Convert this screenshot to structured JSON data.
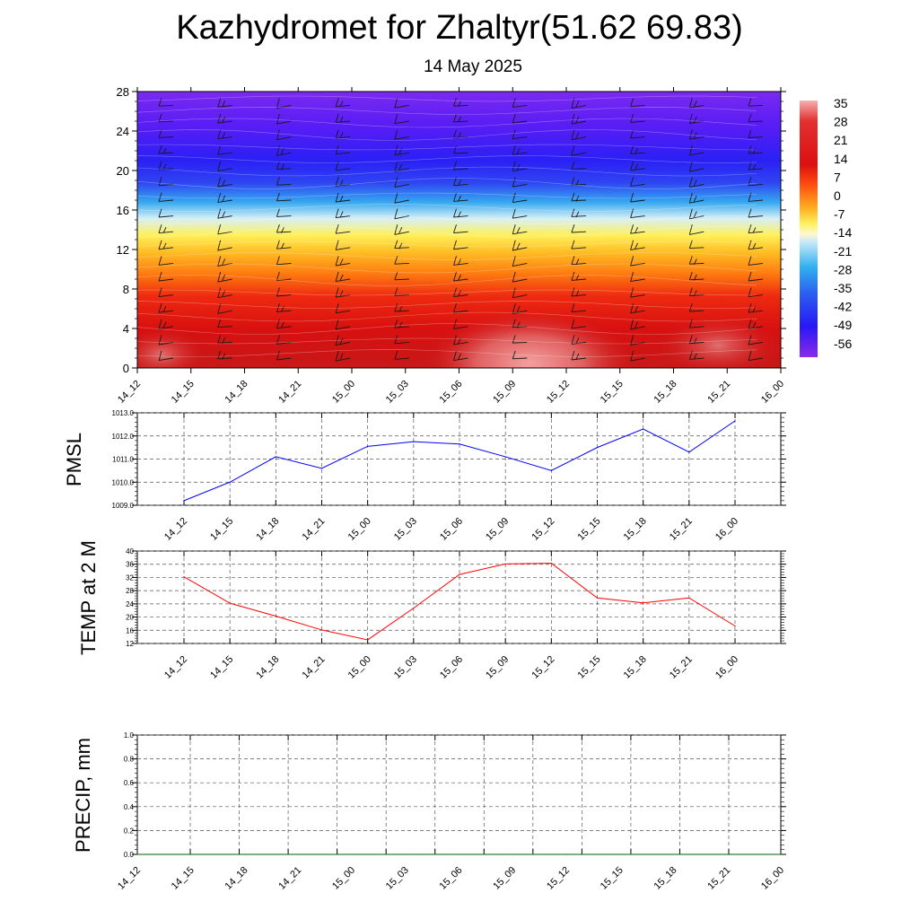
{
  "title": "Kazhydromet for Zhaltyr(51.62 69.83)",
  "subtitle": "14 May 2025",
  "colors": {
    "pmsl_line": "#0000ff",
    "temp_line": "#ff0000",
    "precip_line": "#006400",
    "grid": "#555555",
    "barb": "#1a1a1a"
  },
  "chart_data": [
    {
      "type": "heatmap",
      "name": "cross-section",
      "x": [
        "14_12",
        "14_15",
        "14_18",
        "14_21",
        "15_00",
        "15_03",
        "15_06",
        "15_09",
        "15_12",
        "15_15",
        "15_18",
        "15_21",
        "16_00"
      ],
      "y_ticks": [
        0,
        4,
        8,
        12,
        16,
        20,
        24,
        28
      ],
      "ylim": [
        0,
        28
      ],
      "colorbar": {
        "labels": [
          35,
          28,
          21,
          14,
          7,
          0,
          -7,
          -14,
          -21,
          -28,
          -35,
          -42,
          -49,
          -56
        ],
        "range": [
          -63,
          42
        ]
      },
      "wind_barbs": true
    },
    {
      "type": "line",
      "ylabel": "PMSL",
      "categories": [
        "14_12",
        "14_15",
        "14_18",
        "14_21",
        "15_00",
        "15_03",
        "15_06",
        "15_09",
        "15_12",
        "15_15",
        "15_18",
        "15_21",
        "16_00"
      ],
      "values": [
        1009.2,
        1010.0,
        1011.1,
        1010.6,
        1011.55,
        1011.75,
        1011.65,
        1011.1,
        1010.5,
        1011.5,
        1012.3,
        1011.3,
        1012.65
      ],
      "ylim": [
        1009.0,
        1013.0
      ],
      "y_ticks": [
        "1009.0",
        "1010.0",
        "1011.0",
        "1012.0",
        "1013.0"
      ],
      "grid": true
    },
    {
      "type": "line",
      "ylabel": "TEMP at 2 M",
      "categories": [
        "14_12",
        "14_15",
        "14_18",
        "14_21",
        "15_00",
        "15_03",
        "15_06",
        "15_09",
        "15_12",
        "15_15",
        "15_18",
        "15_21",
        "16_00"
      ],
      "values": [
        32.2,
        24.2,
        20.3,
        16.1,
        13.1,
        22.7,
        32.9,
        36.1,
        36.3,
        25.8,
        24.3,
        25.8,
        17.3
      ],
      "ylim": [
        12,
        40
      ],
      "y_ticks": [
        "12",
        "16",
        "20",
        "24",
        "28",
        "32",
        "36",
        "40"
      ],
      "grid": true
    },
    {
      "type": "line",
      "ylabel": "PRECIP, mm",
      "categories": [
        "14_12",
        "14_15",
        "14_18",
        "14_21",
        "15_00",
        "15_03",
        "15_06",
        "15_09",
        "15_12",
        "15_15",
        "15_18",
        "15_21",
        "16_00"
      ],
      "values": [
        0,
        0,
        0,
        0,
        0,
        0,
        0,
        0,
        0,
        0,
        0,
        0,
        0
      ],
      "ylim": [
        0.0,
        1.0
      ],
      "y_ticks": [
        "0.0",
        "0.2",
        "0.4",
        "0.6",
        "0.8",
        "1.0"
      ],
      "grid": true
    }
  ]
}
